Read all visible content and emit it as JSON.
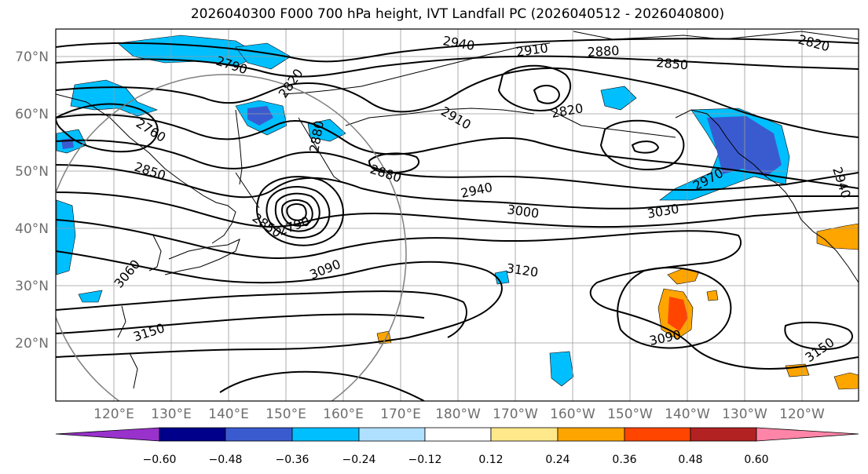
{
  "title": "2026040300 F000 700 hPa height, IVT Landfall PC (2026040512 - 2026040800)",
  "map": {
    "lat_ticks": [
      "70°N",
      "60°N",
      "50°N",
      "40°N",
      "30°N",
      "20°N"
    ],
    "lon_ticks": [
      "120°E",
      "130°E",
      "140°E",
      "150°E",
      "160°E",
      "170°E",
      "180°W",
      "170°W",
      "160°W",
      "150°W",
      "140°W",
      "130°W",
      "120°W"
    ],
    "contour_labels": [
      {
        "text": "2790"
      },
      {
        "text": "2820"
      },
      {
        "text": "2940"
      },
      {
        "text": "2910"
      },
      {
        "text": "2880"
      },
      {
        "text": "2850"
      },
      {
        "text": "2820"
      },
      {
        "text": "2760"
      },
      {
        "text": "2850"
      },
      {
        "text": "2880"
      },
      {
        "text": "2910"
      },
      {
        "text": "2820"
      },
      {
        "text": "2940"
      },
      {
        "text": "3000"
      },
      {
        "text": "3030"
      },
      {
        "text": "2970"
      },
      {
        "text": "2940"
      },
      {
        "text": "2790"
      },
      {
        "text": "2850"
      },
      {
        "text": "3090"
      },
      {
        "text": "3060"
      },
      {
        "text": "3120"
      },
      {
        "text": "3150"
      },
      {
        "text": "3090"
      },
      {
        "text": "3150"
      },
      {
        "text": "2880"
      }
    ]
  },
  "colorbar": {
    "colors": [
      "#9932cc",
      "#00008b",
      "#3a5bd0",
      "#00bfff",
      "#b0e0ff",
      "#ffffff",
      "#ffe88a",
      "#ffa500",
      "#ff4500",
      "#b22222",
      "#ff85a8"
    ],
    "tick_labels": [
      "−0.60",
      "−0.48",
      "−0.36",
      "−0.24",
      "−0.12",
      "0.12",
      "0.24",
      "0.36",
      "0.48",
      "0.60"
    ]
  }
}
